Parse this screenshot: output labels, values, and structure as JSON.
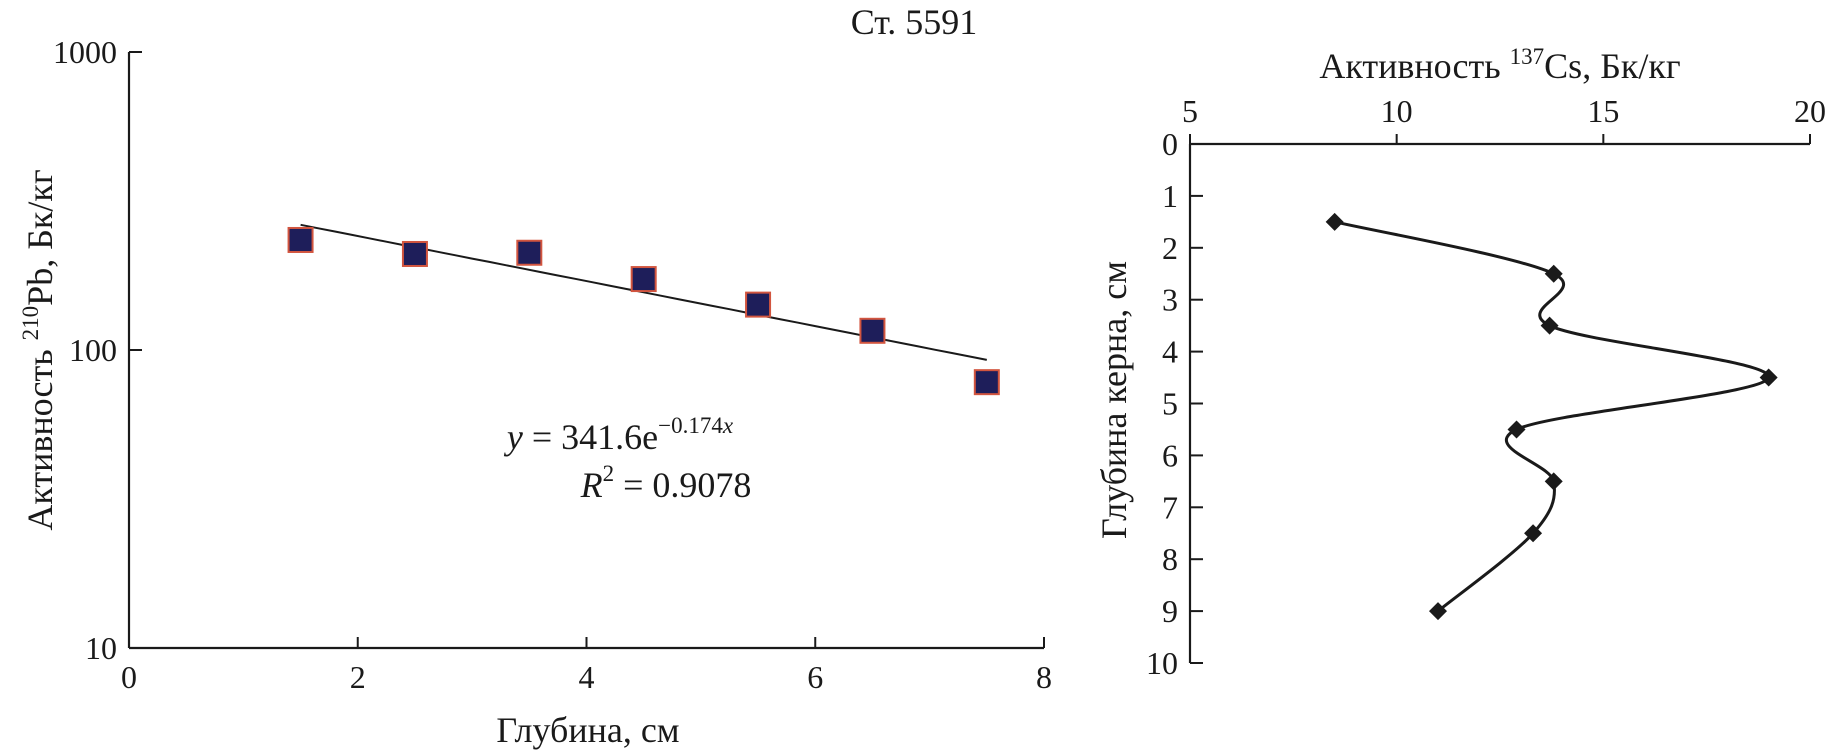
{
  "figure_title": "Ст. 5591",
  "chart_data": [
    {
      "type": "scatter",
      "name": "pb210-vs-depth",
      "xlabel": "Глубина, см",
      "ylabel": {
        "prefix": "Активность ",
        "sup": "210",
        "suffix": "Pb, Бк/кг"
      },
      "xlim": [
        0,
        8
      ],
      "ylim": [
        10,
        1000
      ],
      "yscale": "log",
      "xticks": [
        0,
        2,
        4,
        6,
        8
      ],
      "yticks": [
        10,
        100,
        1000
      ],
      "xtick_labels": [
        "0",
        "2",
        "4",
        "6",
        "8"
      ],
      "ytick_labels": [
        "10",
        "100",
        "1000"
      ],
      "series": [
        {
          "name": "210Pb activity",
          "marker": "square",
          "color": "#1e1e5a",
          "edge_color": "#d2553f",
          "x": [
            1.5,
            2.5,
            3.5,
            4.5,
            5.5,
            6.5,
            7.5
          ],
          "y": [
            234,
            210,
            212,
            173,
            142,
            116,
            78
          ]
        }
      ],
      "trendline": {
        "type": "exponential",
        "a": 341.6,
        "b": -0.174,
        "x_range": [
          1.5,
          7.5
        ],
        "color": "#1a1a1a"
      },
      "annotation": {
        "line1": {
          "y": "y",
          "eq": " = 341.6e",
          "exp": "−0.174",
          "x": "x"
        },
        "line2": {
          "r": "R",
          "sup": "2",
          "rest": " = 0.9078"
        }
      }
    },
    {
      "type": "line",
      "name": "cs137-vs-core-depth",
      "xlabel": {
        "prefix": "Активность ",
        "sup": "137",
        "suffix": "Cs, Бк/кг"
      },
      "ylabel": "Глубина керна, см",
      "xlim": [
        5,
        20
      ],
      "ylim": [
        0,
        10
      ],
      "y_inverted": true,
      "x_axis_position": "top",
      "xticks": [
        5,
        10,
        15,
        20
      ],
      "yticks": [
        0,
        1,
        2,
        3,
        4,
        5,
        6,
        7,
        8,
        9,
        10
      ],
      "xtick_labels": [
        "5",
        "10",
        "15",
        "20"
      ],
      "ytick_labels": [
        "0",
        "1",
        "2",
        "3",
        "4",
        "5",
        "6",
        "7",
        "8",
        "9",
        "10"
      ],
      "series": [
        {
          "name": "137Cs activity",
          "marker": "diamond",
          "smooth": true,
          "color": "#1a1a1a",
          "x": [
            8.5,
            13.8,
            13.7,
            19.0,
            12.9,
            13.8,
            13.3,
            11.0
          ],
          "y": [
            1.5,
            2.5,
            3.5,
            4.5,
            5.5,
            6.5,
            7.5,
            9.0
          ]
        }
      ]
    }
  ]
}
